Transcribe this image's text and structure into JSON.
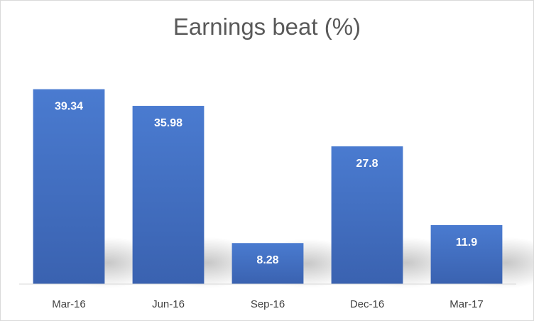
{
  "chart_data": {
    "type": "bar",
    "title": "Earnings beat (%)",
    "categories": [
      "Mar-16",
      "Jun-16",
      "Sep-16",
      "Dec-16",
      "Mar-17"
    ],
    "values": [
      39.34,
      35.98,
      8.28,
      27.8,
      11.9
    ],
    "data_labels": [
      "39.34",
      "35.98",
      "8.28",
      "27.8",
      "11.9"
    ],
    "xlabel": "",
    "ylabel": "",
    "ylim": [
      0,
      40
    ],
    "grid": false,
    "legend": "none",
    "bar_color": "#4472c4",
    "label_color": "#ffffff"
  }
}
